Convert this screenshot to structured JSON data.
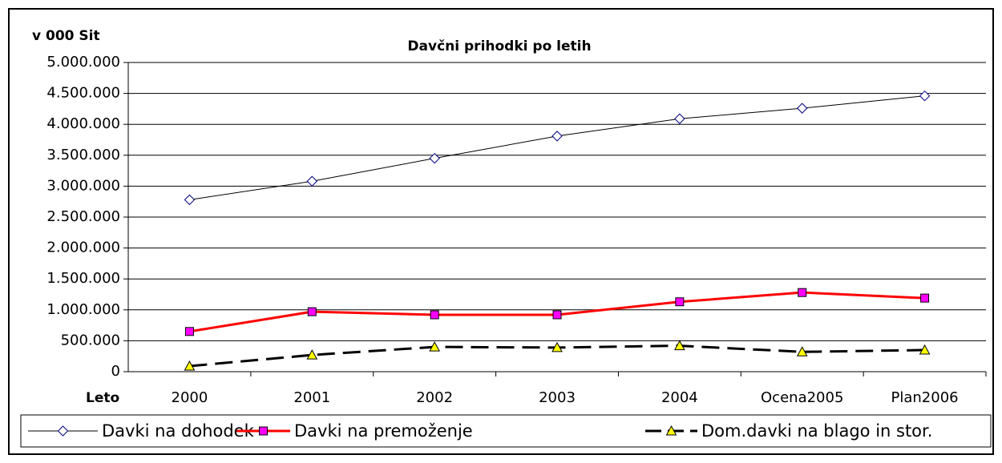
{
  "chart_data": {
    "type": "line",
    "title": "Davčni prihodki po letih",
    "y_axis_label": "v 000 Sit",
    "x_axis_label": "Leto",
    "categories": [
      "2000",
      "2001",
      "2002",
      "2003",
      "2004",
      "Ocena2005",
      "Plan2006"
    ],
    "series": [
      {
        "name": "Davki na dohodek",
        "color": "#000000",
        "marker": "diamond",
        "marker_color": "#ffffff",
        "marker_stroke": "#000080",
        "dashed": false,
        "width": 1,
        "values": [
          2780000,
          3080000,
          3450000,
          3810000,
          4090000,
          4260000,
          4460000
        ]
      },
      {
        "name": "Davki na premoženje",
        "color": "#ff0000",
        "marker": "square",
        "marker_color": "#ff00ff",
        "marker_stroke": "#000000",
        "dashed": false,
        "width": 3,
        "values": [
          650000,
          970000,
          920000,
          920000,
          1130000,
          1280000,
          1190000
        ]
      },
      {
        "name": "Dom.davki na blago in stor.",
        "color": "#000000",
        "marker": "triangle",
        "marker_color": "#ffff00",
        "marker_stroke": "#000000",
        "dashed": true,
        "width": 3,
        "values": [
          90000,
          270000,
          400000,
          390000,
          420000,
          320000,
          350000
        ]
      }
    ],
    "ylim": [
      0,
      5000000
    ],
    "yticks": [
      0,
      {
        "value": 500000,
        "label": "500.000"
      },
      {
        "value": 1000000,
        "label": "1.000.000"
      },
      {
        "value": 1500000,
        "label": "1.500.000"
      },
      {
        "value": 2000000,
        "label": "2.000.000"
      },
      {
        "value": 2500000,
        "label": "2.500.000"
      },
      {
        "value": 3000000,
        "label": "3.000.000"
      },
      {
        "value": 3500000,
        "label": "3.500.000"
      },
      {
        "value": 4000000,
        "label": "4.000.000"
      },
      {
        "value": 4500000,
        "label": "4.500.000"
      },
      {
        "value": 5000000,
        "label": "5.000.000"
      }
    ],
    "grid": true,
    "legend": "bottom"
  }
}
